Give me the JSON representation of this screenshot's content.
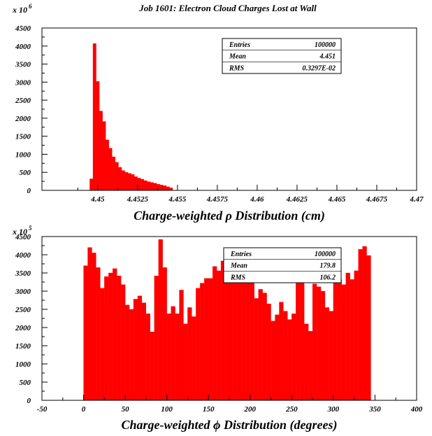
{
  "page_title": "Job 1601: Electron Cloud Charges Lost at Wall",
  "colors": {
    "bar": "#ff0000",
    "axis": "#000000",
    "background": "#ffffff"
  },
  "chart_data": [
    {
      "type": "bar",
      "multiplier_label": {
        "base": "x 10",
        "exponent": "6"
      },
      "xlabel": "Charge-weighted ρ Distribution (cm)",
      "xlim": [
        4.4465,
        4.47
      ],
      "ylim": [
        0,
        4500
      ],
      "bin_start": 4.4495,
      "bin_width": 0.0002,
      "values": [
        320,
        4070,
        3020,
        2200,
        1910,
        1400,
        1170,
        930,
        780,
        640,
        550,
        500,
        470,
        440,
        380,
        340,
        310,
        270,
        240,
        220,
        200,
        170,
        150,
        130,
        100,
        70
      ],
      "x_ticks": [
        "4.45",
        "4.4525",
        "4.455",
        "4.4575",
        "4.46",
        "4.4625",
        "4.465",
        "4.4675",
        "4.47"
      ],
      "y_ticks": [
        "0",
        "500",
        "1000",
        "1500",
        "2000",
        "2500",
        "3000",
        "3500",
        "4000",
        "4500"
      ],
      "stats": [
        {
          "label": "Entries",
          "value": "100000"
        },
        {
          "label": "Mean",
          "value": "4.451"
        },
        {
          "label": "RMS",
          "value": "0.3297E-02"
        }
      ],
      "grid": false
    },
    {
      "type": "bar",
      "multiplier_label": {
        "base": "x 10",
        "exponent": "5"
      },
      "xlabel": "Charge-weighted ϕ Distribution (degrees)",
      "xlim": [
        -50,
        400
      ],
      "ylim": [
        0,
        4500
      ],
      "bin_start": 0,
      "bin_width": 5,
      "values": [
        3700,
        4200,
        4050,
        3650,
        3080,
        3400,
        3500,
        3620,
        3420,
        3180,
        2620,
        2500,
        2780,
        2870,
        2680,
        2380,
        1880,
        3420,
        4420,
        3650,
        2380,
        2580,
        2380,
        3030,
        2100,
        2550,
        2300,
        3080,
        3220,
        3350,
        3350,
        3680,
        3560,
        3830,
        3950,
        3700,
        3950,
        3950,
        3580,
        3800,
        3700,
        2800,
        3050,
        2950,
        2650,
        2180,
        2350,
        2700,
        2450,
        2220,
        2380,
        4100,
        3880,
        2100,
        1900,
        3200,
        3120,
        3000,
        2550,
        2450,
        3500,
        3320,
        3180,
        3500,
        3320,
        3560,
        4150,
        4230,
        3980
      ],
      "x_ticks": [
        "-50",
        "0",
        "50",
        "100",
        "150",
        "200",
        "250",
        "300",
        "350",
        "400"
      ],
      "y_ticks": [
        "0",
        "500",
        "1000",
        "1500",
        "2000",
        "2500",
        "3000",
        "3500",
        "4000",
        "4500"
      ],
      "stats": [
        {
          "label": "Entries",
          "value": "100000"
        },
        {
          "label": "Mean",
          "value": "179.8"
        },
        {
          "label": "RMS",
          "value": "106.2"
        }
      ],
      "grid": false
    }
  ]
}
